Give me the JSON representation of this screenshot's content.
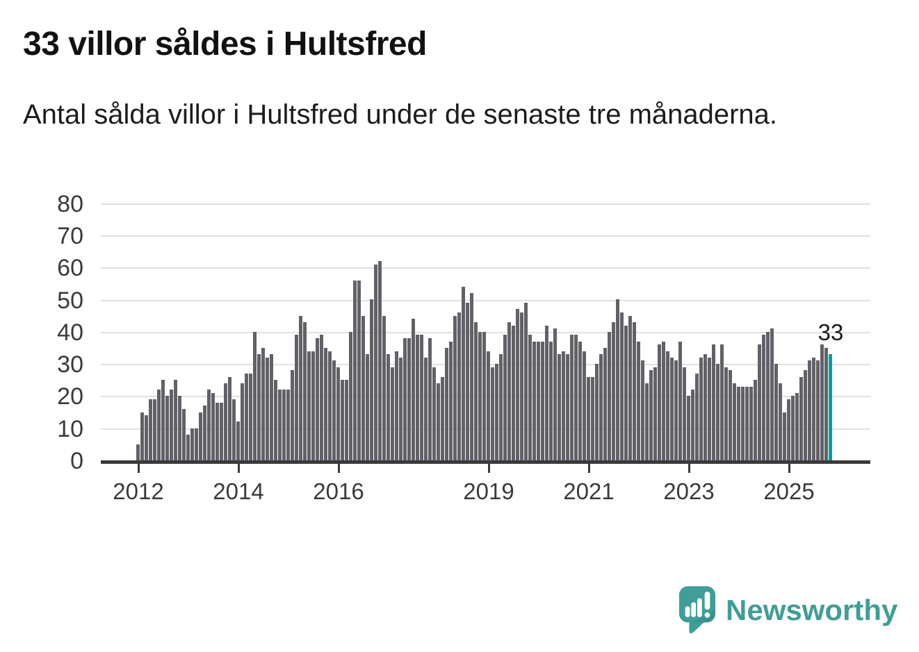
{
  "header": {
    "title": "33 villor såldes i Hultsfred",
    "subtitle": "Antal sålda villor i Hultsfred under de senaste tre månaderna."
  },
  "chart_data": {
    "type": "bar",
    "title": "33 villor såldes i Hultsfred",
    "subtitle": "Antal sålda villor i Hultsfred under de senaste tre månaderna.",
    "ylabel": "",
    "xlabel": "",
    "ylim": [
      0,
      80
    ],
    "y_ticks": [
      0,
      10,
      20,
      30,
      40,
      50,
      60,
      70,
      80
    ],
    "x_tick_labels": [
      "2012",
      "2014",
      "2016",
      "2019",
      "2021",
      "2023",
      "2025"
    ],
    "grid": "horizontal",
    "bar_color": "#626167",
    "categories_note": "monthly values, rolling three-month sales counts",
    "values_by_year": {
      "2012": [
        5,
        15,
        14,
        19,
        19,
        22,
        25,
        20,
        22,
        25,
        20,
        16
      ],
      "2013": [
        8,
        10,
        10,
        15,
        17,
        22,
        21,
        18,
        18,
        24,
        26,
        19
      ],
      "2014": [
        12,
        24,
        27,
        27,
        40,
        33,
        35,
        32,
        33,
        25,
        22,
        22
      ],
      "2015": [
        22,
        28,
        39,
        45,
        43,
        34,
        34,
        38,
        39,
        35,
        34,
        31
      ],
      "2016": [
        29,
        25,
        25,
        40,
        56,
        56,
        45,
        33,
        50,
        61,
        62,
        45
      ],
      "2017": [
        33,
        29,
        34,
        32,
        38,
        38,
        44,
        39,
        39,
        32,
        38,
        29
      ],
      "2018": [
        24,
        26,
        35,
        37,
        45,
        46,
        54,
        49,
        52,
        43,
        40,
        40
      ],
      "2019": [
        34,
        29,
        30,
        33,
        39,
        43,
        42,
        47,
        46,
        49,
        39,
        37
      ],
      "2020": [
        37,
        37,
        42,
        37,
        41,
        33,
        34,
        33,
        39,
        39,
        37,
        34
      ],
      "2021": [
        26,
        26,
        30,
        33,
        35,
        40,
        43,
        50,
        46,
        42,
        45,
        43
      ],
      "2022": [
        37,
        31,
        24,
        28,
        29,
        36,
        37,
        34,
        32,
        31,
        37,
        29
      ],
      "2023": [
        20,
        22,
        27,
        32,
        33,
        32,
        36,
        30,
        36,
        29,
        28,
        24
      ],
      "2024": [
        23,
        23,
        23,
        23,
        25,
        36,
        39,
        40,
        41,
        30,
        24,
        15
      ],
      "2025": [
        19,
        20,
        21,
        26,
        28,
        31,
        32,
        31,
        36,
        35,
        33
      ]
    },
    "highlight": {
      "value": 33,
      "label": "33",
      "color": "#00a09a",
      "position": "last-bar"
    }
  },
  "branding": {
    "logo_text": "Newsworthy",
    "logo_icon": "newsworthy-speech-bubble-bar-chart-icon",
    "logo_color": "#3f9e97"
  },
  "colors": {
    "background": "#ffffff",
    "bar": "#626167",
    "highlight_bar": "#00a09a",
    "gridline": "#e1e1e1",
    "axis": "#3a3a3a",
    "text": "#111111"
  }
}
